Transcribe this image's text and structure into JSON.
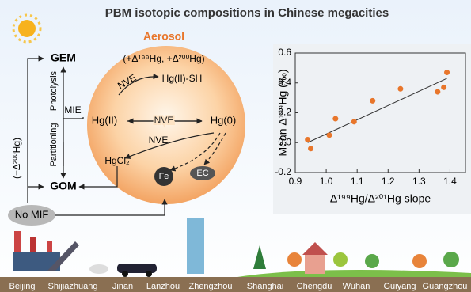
{
  "header": {
    "title": "PBM isotopic compositions in Chinese megacities"
  },
  "diagram": {
    "aerosol": "Aerosol",
    "aerosol_signature": "(+Δ¹⁹⁹Hg, +Δ²⁰⁰Hg)",
    "gem": "GEM",
    "gom": "GOM",
    "photolysis": "Photolysis",
    "partitioning": "Partitioning",
    "mie": "MIE",
    "gom_signature": "(+Δ²⁰⁰Hg)",
    "no_mif": "No MIF",
    "nve_top": "NVE",
    "nve_middle": "NVE",
    "nve_lower": "NVE",
    "hg_sh": "Hg(II)-SH",
    "hg2": "Hg(II)",
    "hg0": "Hg(0)",
    "hgcl2": "HgCl₂",
    "fe": "Fe",
    "ec": "EC"
  },
  "cities": [
    "Beijing",
    "Shijiazhuang",
    "Jinan",
    "Lanzhou",
    "Zhengzhou",
    "Shanghai",
    "Chengdu",
    "Wuhan",
    "Guiyang",
    "Guangzhou"
  ],
  "chart_data": {
    "type": "scatter",
    "x_label": "Δ¹⁹⁹Hg/Δ²⁰¹Hg slope",
    "y_label": "Mean Δ¹⁹⁹Hg (‰)",
    "x": [
      0.94,
      0.95,
      1.01,
      1.03,
      1.09,
      1.15,
      1.24,
      1.36,
      1.38,
      1.39
    ],
    "values": [
      0.02,
      -0.04,
      0.05,
      0.16,
      0.14,
      0.28,
      0.36,
      0.34,
      0.37,
      0.47
    ],
    "color": "#e8762b",
    "fit_line": {
      "x": [
        0.94,
        1.39
      ],
      "y": [
        0.0,
        0.43
      ],
      "color": "#333333"
    },
    "xlim": [
      0.9,
      1.45
    ],
    "ylim": [
      -0.2,
      0.6
    ],
    "xticks": [
      0.9,
      {
        "value": 1.0,
        "label": "1.0"
      },
      1.1,
      1.2,
      1.3,
      1.4
    ],
    "yticks": [
      -0.2,
      {
        "value": 0,
        "label": "0.0"
      },
      0.2,
      0.4,
      0.6
    ]
  }
}
